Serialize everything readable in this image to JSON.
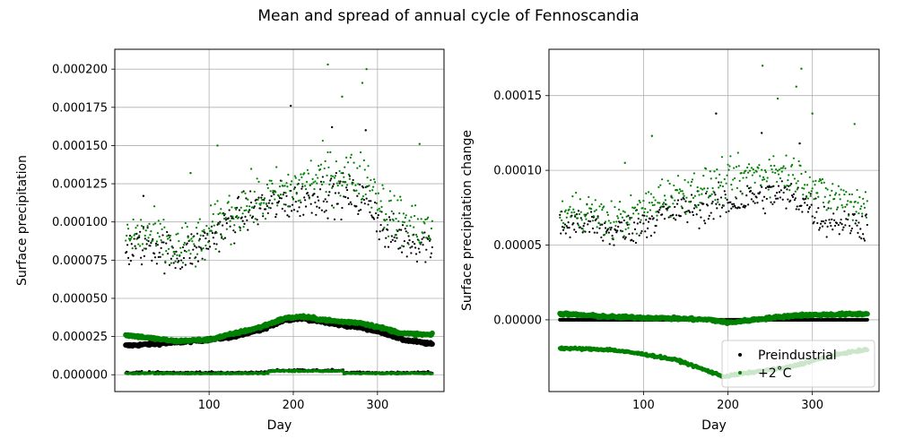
{
  "suptitle": "Mean and spread of annual cycle of Fennoscandia",
  "chart_data": [
    {
      "type": "scatter",
      "xlabel": "Day",
      "ylabel": "Surface precipitation",
      "xlim": [
        -12,
        379
      ],
      "ylim": [
        -1.1e-05,
        0.000213
      ],
      "xticks": [
        100,
        200,
        300
      ],
      "xtick_labels": [
        "100",
        "200",
        "300"
      ],
      "yticks": [
        0.0,
        2.5e-05,
        5e-05,
        7.5e-05,
        0.0001,
        0.000125,
        0.00015,
        0.000175,
        0.0002
      ],
      "ytick_labels": [
        "0.000000",
        "0.000025",
        "0.000050",
        "0.000075",
        "0.000100",
        "0.000125",
        "0.000150",
        "0.000175",
        "0.000200"
      ],
      "grid": true,
      "series": [
        {
          "name": "Preindustrial",
          "color": "#000000",
          "mean_curve": [
            [
              1,
              1.9e-05
            ],
            [
              60,
              2.1e-05
            ],
            [
              100,
              2.3e-05
            ],
            [
              130,
              2.5e-05
            ],
            [
              160,
              2.9e-05
            ],
            [
              190,
              3.6e-05
            ],
            [
              210,
              3.7e-05
            ],
            [
              250,
              3.3e-05
            ],
            [
              280,
              3.1e-05
            ],
            [
              310,
              2.7e-05
            ],
            [
              330,
              2.3e-05
            ],
            [
              365,
              2e-05
            ]
          ],
          "max_curve": [
            [
              1,
              8.2e-05
            ],
            [
              30,
              8.6e-05
            ],
            [
              60,
              7.8e-05
            ],
            [
              90,
              8.4e-05
            ],
            [
              120,
              9.8e-05
            ],
            [
              150,
              0.000108
            ],
            [
              180,
              0.000112
            ],
            [
              200,
              0.000114
            ],
            [
              230,
              0.000118
            ],
            [
              260,
              0.000118
            ],
            [
              290,
              0.000114
            ],
            [
              310,
              9.2e-05
            ],
            [
              340,
              8.8e-05
            ],
            [
              365,
              8.5e-05
            ]
          ],
          "max_spread": 1.3e-05,
          "min_level": 1e-06,
          "outliers": [
            [
              197,
              0.000176
            ],
            [
              246,
              0.000162
            ],
            [
              286,
              0.00016
            ],
            [
              22,
              0.000117
            ]
          ]
        },
        {
          "name": "+2$^{\\circ}$C",
          "color": "#008000",
          "mean_curve": [
            [
              1,
              2.6e-05
            ],
            [
              60,
              2.2e-05
            ],
            [
              100,
              2.3e-05
            ],
            [
              130,
              2.7e-05
            ],
            [
              160,
              3.1e-05
            ],
            [
              190,
              3.7e-05
            ],
            [
              210,
              3.8e-05
            ],
            [
              250,
              3.5e-05
            ],
            [
              280,
              3.4e-05
            ],
            [
              310,
              3e-05
            ],
            [
              330,
              2.7e-05
            ],
            [
              365,
              2.6e-05
            ]
          ],
          "max_curve": [
            [
              1,
              9e-05
            ],
            [
              30,
              9.2e-05
            ],
            [
              60,
              8.2e-05
            ],
            [
              90,
              8.6e-05
            ],
            [
              120,
              0.000104
            ],
            [
              150,
              0.000112
            ],
            [
              180,
              0.000118
            ],
            [
              200,
              0.000122
            ],
            [
              230,
              0.00013
            ],
            [
              260,
              0.000132
            ],
            [
              290,
              0.000128
            ],
            [
              310,
              0.000108
            ],
            [
              340,
              9.8e-05
            ],
            [
              365,
              9.5e-05
            ]
          ],
          "max_spread": 1.6e-05,
          "min_level": 5e-07,
          "outliers": [
            [
              241,
              0.000203
            ],
            [
              287,
              0.0002
            ],
            [
              258,
              0.000182
            ],
            [
              282,
              0.000191
            ],
            [
              110,
              0.00015
            ],
            [
              78,
              0.000132
            ],
            [
              350,
              0.000151
            ]
          ]
        }
      ]
    },
    {
      "type": "scatter",
      "xlabel": "Day",
      "ylabel": "Surface precipitation change",
      "xlim": [
        -12,
        379
      ],
      "ylim": [
        -4.8e-05,
        0.000181
      ],
      "xticks": [
        100,
        200,
        300
      ],
      "xtick_labels": [
        "100",
        "200",
        "300"
      ],
      "yticks": [
        0.0,
        5e-05,
        0.0001,
        0.00015
      ],
      "ytick_labels": [
        "0.00000",
        "0.00005",
        "0.00010",
        "0.00015"
      ],
      "grid": true,
      "legend": {
        "location": "lower right",
        "entries": [
          "Preindustrial",
          "+2$^{\\circ}$C"
        ],
        "display": [
          "Preindustrial",
          "+2˚C"
        ]
      },
      "series": [
        {
          "name": "Preindustrial",
          "color": "#000000",
          "mean_curve": [
            [
              1,
              0.0
            ],
            [
              365,
              0.0
            ]
          ],
          "max_curve": [
            [
              1,
              6.2e-05
            ],
            [
              30,
              6.6e-05
            ],
            [
              60,
              5.8e-05
            ],
            [
              90,
              6.2e-05
            ],
            [
              120,
              7e-05
            ],
            [
              150,
              7.4e-05
            ],
            [
              180,
              7.6e-05
            ],
            [
              200,
              7.8e-05
            ],
            [
              230,
              8.2e-05
            ],
            [
              260,
              8.4e-05
            ],
            [
              290,
              8e-05
            ],
            [
              310,
              6.8e-05
            ],
            [
              340,
              6.6e-05
            ],
            [
              365,
              6.3e-05
            ]
          ],
          "max_spread": 1.1e-05,
          "outliers": [
            [
              186,
              0.000138
            ],
            [
              240,
              0.000125
            ],
            [
              285,
              0.000118
            ]
          ]
        },
        {
          "name": "+2$^{\\circ}$C",
          "color": "#008000",
          "mean_curve": [
            [
              1,
              4e-06
            ],
            [
              60,
              2e-06
            ],
            [
              130,
              1e-06
            ],
            [
              180,
              0.0
            ],
            [
              200,
              -2e-06
            ],
            [
              230,
              0.0
            ],
            [
              280,
              3e-06
            ],
            [
              365,
              4e-06
            ]
          ],
          "min_curve": [
            [
              1,
              -1.9e-05
            ],
            [
              60,
              -2e-05
            ],
            [
              100,
              -2.3e-05
            ],
            [
              140,
              -2.7e-05
            ],
            [
              170,
              -3.3e-05
            ],
            [
              195,
              -3.8e-05
            ],
            [
              230,
              -3.5e-05
            ],
            [
              270,
              -3.2e-05
            ],
            [
              310,
              -2.6e-05
            ],
            [
              340,
              -2.2e-05
            ],
            [
              365,
              -2e-05
            ]
          ],
          "max_curve": [
            [
              1,
              7e-05
            ],
            [
              30,
              7.4e-05
            ],
            [
              60,
              6.6e-05
            ],
            [
              90,
              7e-05
            ],
            [
              120,
              8.2e-05
            ],
            [
              150,
              8.6e-05
            ],
            [
              180,
              9e-05
            ],
            [
              200,
              9.2e-05
            ],
            [
              230,
              9.8e-05
            ],
            [
              260,
              0.0001
            ],
            [
              290,
              9.6e-05
            ],
            [
              310,
              8.4e-05
            ],
            [
              340,
              8e-05
            ],
            [
              365,
              7.8e-05
            ]
          ],
          "max_spread": 1.3e-05,
          "outliers": [
            [
              241,
              0.00017
            ],
            [
              287,
              0.000168
            ],
            [
              259,
              0.000148
            ],
            [
              281,
              0.000156
            ],
            [
              110,
              0.000123
            ],
            [
              78,
              0.000105
            ],
            [
              350,
              0.000131
            ],
            [
              300,
              0.000138
            ]
          ]
        }
      ]
    }
  ]
}
